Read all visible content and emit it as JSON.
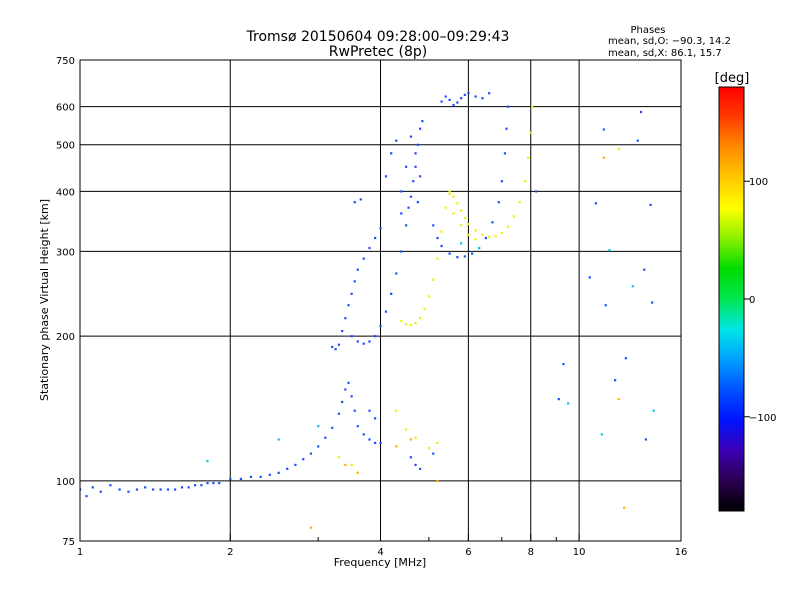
{
  "chart_data": {
    "type": "scatter",
    "title": "Tromsø 20150604 09:28:00–09:29:43",
    "subtitle": "RwPretec (8p)",
    "phases_info": {
      "heading": "Phases",
      "line_o": "mean, sd,O: −90.3, 14.2",
      "line_x": "mean, sd,X: 86.1, 15.7"
    },
    "xlabel": "Frequency [MHz]",
    "ylabel": "Stationary phase Virtual Height [km]",
    "xscale": "log",
    "yscale": "log",
    "xlim": [
      1,
      16
    ],
    "ylim": [
      75,
      750
    ],
    "grid": true,
    "xticks": [
      {
        "value": 1,
        "label": "1"
      },
      {
        "value": 2,
        "label": "2"
      },
      {
        "value": 4,
        "label": "4"
      },
      {
        "value": 6,
        "label": "6"
      },
      {
        "value": 8,
        "label": "8"
      },
      {
        "value": 10,
        "label": "10"
      },
      {
        "value": 16,
        "label": "16"
      }
    ],
    "xminor": [
      3,
      5,
      7,
      9
    ],
    "yticks": [
      {
        "value": 75,
        "label": "75"
      },
      {
        "value": 100,
        "label": "100"
      },
      {
        "value": 200,
        "label": "200"
      },
      {
        "value": 300,
        "label": "300"
      },
      {
        "value": 400,
        "label": "400"
      },
      {
        "value": 500,
        "label": "500"
      },
      {
        "value": 600,
        "label": "600"
      },
      {
        "value": 750,
        "label": "750"
      }
    ],
    "colorbar": {
      "label": "[deg]",
      "range": [
        -180,
        180
      ],
      "ticks": [
        {
          "value": 100,
          "label": "100"
        },
        {
          "value": 0,
          "label": "0"
        },
        {
          "value": -100,
          "label": "−100"
        }
      ],
      "colors": [
        "#000000",
        "#2a0050",
        "#3c00b4",
        "#0014ff",
        "#0050ff",
        "#00a0ff",
        "#00e6e6",
        "#00e650",
        "#00dc00",
        "#8cf000",
        "#ffff00",
        "#ffc800",
        "#ff8c00",
        "#ff3c00",
        "#ff0000"
      ]
    },
    "series": [
      {
        "phase_deg": -90,
        "color": "#1e4cff",
        "points": [
          [
            1.0,
            96
          ],
          [
            1.03,
            93
          ],
          [
            1.06,
            97
          ],
          [
            1.1,
            95
          ],
          [
            1.15,
            98
          ],
          [
            1.2,
            96
          ],
          [
            1.25,
            95
          ],
          [
            1.3,
            96
          ],
          [
            1.35,
            97
          ],
          [
            1.4,
            96
          ],
          [
            1.45,
            96
          ],
          [
            1.5,
            96
          ],
          [
            1.55,
            96
          ],
          [
            1.6,
            97
          ],
          [
            1.65,
            97
          ],
          [
            1.7,
            98
          ],
          [
            1.75,
            98
          ],
          [
            1.8,
            99
          ],
          [
            1.85,
            99
          ],
          [
            1.9,
            99
          ],
          [
            2.0,
            101
          ],
          [
            2.1,
            101
          ],
          [
            2.2,
            102
          ],
          [
            2.3,
            102
          ],
          [
            2.4,
            103
          ],
          [
            2.5,
            104
          ],
          [
            2.6,
            106
          ],
          [
            2.7,
            108
          ],
          [
            2.8,
            111
          ],
          [
            2.9,
            114
          ],
          [
            3.0,
            118
          ],
          [
            3.1,
            123
          ],
          [
            3.2,
            129
          ],
          [
            3.3,
            138
          ],
          [
            3.35,
            146
          ],
          [
            3.4,
            155
          ],
          [
            3.45,
            160
          ],
          [
            3.5,
            150
          ],
          [
            3.55,
            140
          ],
          [
            3.6,
            130
          ],
          [
            3.7,
            125
          ],
          [
            3.8,
            122
          ],
          [
            3.9,
            120
          ],
          [
            4.0,
            120
          ],
          [
            3.2,
            190
          ],
          [
            3.25,
            188
          ],
          [
            3.3,
            192
          ],
          [
            3.35,
            205
          ],
          [
            3.4,
            218
          ],
          [
            3.45,
            232
          ],
          [
            3.5,
            245
          ],
          [
            3.55,
            260
          ],
          [
            3.6,
            275
          ],
          [
            3.7,
            290
          ],
          [
            3.8,
            305
          ],
          [
            3.9,
            320
          ],
          [
            4.0,
            335
          ],
          [
            3.55,
            380
          ],
          [
            3.65,
            385
          ],
          [
            3.5,
            200
          ],
          [
            3.6,
            195
          ],
          [
            3.7,
            193
          ],
          [
            3.8,
            195
          ],
          [
            3.9,
            200
          ],
          [
            4.0,
            210
          ],
          [
            4.1,
            225
          ],
          [
            4.2,
            245
          ],
          [
            4.3,
            270
          ],
          [
            4.4,
            300
          ],
          [
            4.5,
            340
          ],
          [
            4.6,
            390
          ],
          [
            4.7,
            450
          ],
          [
            4.75,
            500
          ],
          [
            4.8,
            540
          ],
          [
            4.85,
            560
          ],
          [
            4.1,
            430
          ],
          [
            4.2,
            480
          ],
          [
            4.3,
            510
          ],
          [
            4.4,
            400
          ],
          [
            4.5,
            450
          ],
          [
            4.6,
            520
          ],
          [
            4.7,
            480
          ],
          [
            4.8,
            430
          ],
          [
            4.4,
            360
          ],
          [
            4.55,
            370
          ],
          [
            4.65,
            420
          ],
          [
            4.75,
            380
          ],
          [
            5.1,
            340
          ],
          [
            5.2,
            320
          ],
          [
            5.3,
            308
          ],
          [
            5.5,
            297
          ],
          [
            5.7,
            292
          ],
          [
            5.9,
            293
          ],
          [
            6.1,
            297
          ],
          [
            6.3,
            305
          ],
          [
            6.5,
            320
          ],
          [
            6.7,
            345
          ],
          [
            6.9,
            380
          ],
          [
            7.0,
            420
          ],
          [
            7.1,
            480
          ],
          [
            7.15,
            540
          ],
          [
            7.2,
            600
          ],
          [
            5.3,
            615
          ],
          [
            5.4,
            630
          ],
          [
            5.5,
            620
          ],
          [
            5.6,
            605
          ],
          [
            5.7,
            612
          ],
          [
            5.8,
            625
          ],
          [
            5.9,
            635
          ],
          [
            6.0,
            640
          ],
          [
            6.2,
            630
          ],
          [
            6.4,
            625
          ],
          [
            6.6,
            640
          ],
          [
            4.6,
            112
          ],
          [
            4.7,
            108
          ],
          [
            4.8,
            106
          ],
          [
            5.1,
            114
          ],
          [
            3.8,
            140
          ],
          [
            3.9,
            135
          ]
        ]
      },
      {
        "phase_deg": 90,
        "color": "#f0f000",
        "points": [
          [
            4.4,
            215
          ],
          [
            4.5,
            212
          ],
          [
            4.6,
            211
          ],
          [
            4.7,
            213
          ],
          [
            4.8,
            218
          ],
          [
            4.9,
            228
          ],
          [
            5.0,
            242
          ],
          [
            5.1,
            262
          ],
          [
            5.2,
            290
          ],
          [
            5.3,
            330
          ],
          [
            5.4,
            370
          ],
          [
            5.5,
            395
          ],
          [
            5.5,
            400
          ],
          [
            5.6,
            390
          ],
          [
            5.7,
            378
          ],
          [
            5.8,
            365
          ],
          [
            5.9,
            352
          ],
          [
            6.0,
            342
          ],
          [
            6.2,
            332
          ],
          [
            6.4,
            325
          ],
          [
            6.6,
            322
          ],
          [
            6.8,
            323
          ],
          [
            7.0,
            328
          ],
          [
            7.2,
            338
          ],
          [
            7.4,
            355
          ],
          [
            7.6,
            380
          ],
          [
            7.8,
            420
          ],
          [
            7.9,
            470
          ],
          [
            8.0,
            530
          ],
          [
            8.05,
            600
          ],
          [
            5.6,
            360
          ],
          [
            5.8,
            340
          ],
          [
            6.0,
            325
          ],
          [
            6.2,
            318
          ],
          [
            4.3,
            140
          ],
          [
            4.5,
            128
          ],
          [
            4.7,
            123
          ],
          [
            5.0,
            117
          ],
          [
            5.2,
            120
          ],
          [
            3.3,
            112
          ],
          [
            3.5,
            108
          ],
          [
            12.0,
            490
          ]
        ]
      },
      {
        "phase_deg": 50,
        "color": "#ffb000",
        "points": [
          [
            3.4,
            108
          ],
          [
            3.6,
            104
          ],
          [
            4.3,
            118
          ],
          [
            4.6,
            122
          ],
          [
            5.2,
            100
          ],
          [
            12.3,
            88
          ],
          [
            12.0,
            148
          ],
          [
            11.2,
            470
          ],
          [
            2.9,
            80
          ]
        ]
      },
      {
        "phase_deg": -20,
        "color": "#00c8e6",
        "points": [
          [
            2.5,
            122
          ],
          [
            3.0,
            130
          ],
          [
            11.5,
            302
          ],
          [
            12.8,
            254
          ],
          [
            9.5,
            145
          ],
          [
            6.3,
            305
          ],
          [
            5.8,
            312
          ],
          [
            1.8,
            110
          ],
          [
            14.1,
            140
          ],
          [
            11.1,
            125
          ]
        ]
      },
      {
        "phase_deg": -95,
        "color": "#1e4cff",
        "points": [
          [
            9.3,
            175
          ],
          [
            9.1,
            148
          ],
          [
            10.8,
            378
          ],
          [
            10.5,
            265
          ],
          [
            11.3,
            232
          ],
          [
            13.3,
            585
          ],
          [
            13.1,
            510
          ],
          [
            13.9,
            375
          ],
          [
            13.5,
            275
          ],
          [
            14.0,
            235
          ],
          [
            13.6,
            122
          ],
          [
            11.2,
            538
          ],
          [
            8.2,
            400
          ],
          [
            11.8,
            162
          ],
          [
            12.4,
            180
          ]
        ]
      }
    ]
  }
}
